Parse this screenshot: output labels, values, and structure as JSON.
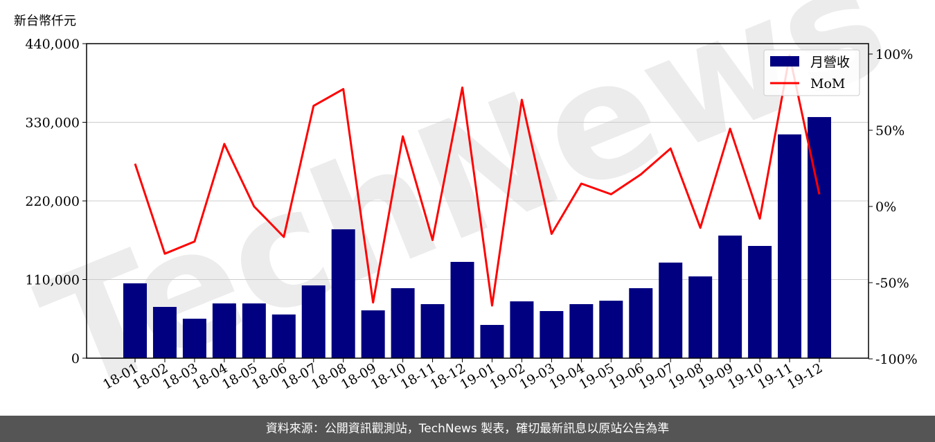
{
  "chart_data": {
    "type": "bar+line",
    "y_unit_label": "新台幣仟元",
    "categories": [
      "18-01",
      "18-02",
      "18-03",
      "18-04",
      "18-05",
      "18-06",
      "18-07",
      "18-08",
      "18-09",
      "18-10",
      "18-11",
      "18-12",
      "19-01",
      "19-02",
      "19-03",
      "19-04",
      "19-05",
      "19-06",
      "19-07",
      "19-08",
      "19-09",
      "19-10",
      "19-11",
      "19-12"
    ],
    "series": [
      {
        "name": "月營收",
        "type": "bar",
        "axis": "left",
        "color": "#000080",
        "values": [
          104700,
          71700,
          55200,
          76600,
          76600,
          61100,
          101800,
          180300,
          66900,
          97900,
          75600,
          134700,
          46500,
          79500,
          65900,
          75600,
          80400,
          97900,
          133700,
          114400,
          171500,
          157000,
          313000,
          337300
        ]
      },
      {
        "name": "MoM",
        "type": "line",
        "axis": "right",
        "color": "#ff0000",
        "values": [
          28,
          -31,
          -23,
          41,
          0,
          -20,
          66,
          77,
          -63,
          46,
          -22,
          78,
          -65,
          70,
          -18,
          15,
          8,
          21,
          38,
          -14,
          51,
          -8,
          99,
          8
        ]
      }
    ],
    "left_axis": {
      "ylim": [
        0,
        440000
      ],
      "ticks": [
        "0",
        "110,000",
        "220,000",
        "330,000",
        "440,000"
      ],
      "tick_values": [
        0,
        110000,
        220000,
        330000,
        440000
      ]
    },
    "right_axis": {
      "ylim": [
        -100,
        100
      ],
      "ticks": [
        "-100%",
        "-50%",
        "0%",
        "50%",
        "100%"
      ],
      "tick_values": [
        -100,
        -50,
        0,
        50,
        100
      ]
    },
    "grid": "horizontal",
    "legend": "top-right"
  },
  "watermark": "TechNews",
  "footer": "資料來源：公開資訊觀測站，TechNews 製表，確切最新訊息以原站公告為準"
}
